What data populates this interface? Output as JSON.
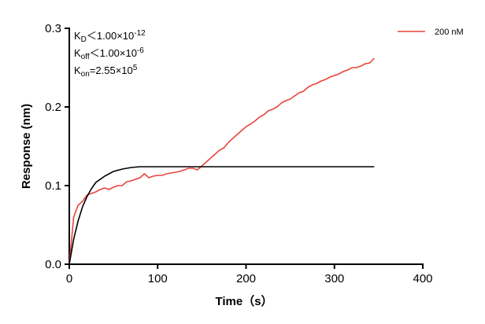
{
  "chart_data": {
    "type": "line",
    "xlabel": "Time（s）",
    "ylabel": "Response (nm)",
    "xlim": [
      0,
      400
    ],
    "xticks": [
      0,
      100,
      200,
      300,
      400
    ],
    "ylim": [
      0,
      0.3
    ],
    "yticks": [
      {
        "value": 0,
        "label": "0.0"
      },
      0.1,
      0.2,
      0.3
    ],
    "annotations": [
      {
        "base": "K",
        "sub": "D",
        "text": "＜1.00×10",
        "sup": "-12"
      },
      {
        "base": "K",
        "sub": "off",
        "text": "＜1.00×10",
        "sup": "-6"
      },
      {
        "base": "K",
        "sub": "on",
        "text": "=2.55×10",
        "sup": "5"
      }
    ],
    "series": [
      {
        "name": "200 nM",
        "color": "#e8453c",
        "x": [
          0,
          5,
          10,
          15,
          20,
          25,
          30,
          35,
          40,
          45,
          50,
          55,
          60,
          65,
          70,
          75,
          80,
          85,
          90,
          95,
          100,
          105,
          110,
          115,
          120,
          125,
          130,
          135,
          140,
          145,
          150,
          155,
          160,
          165,
          170,
          175,
          180,
          185,
          190,
          195,
          200,
          205,
          210,
          215,
          220,
          225,
          230,
          235,
          240,
          245,
          250,
          255,
          260,
          265,
          270,
          275,
          280,
          285,
          290,
          295,
          300,
          305,
          310,
          315,
          320,
          325,
          330,
          335,
          340,
          345
        ],
        "values": [
          0,
          0.06,
          0.075,
          0.08,
          0.088,
          0.09,
          0.092,
          0.095,
          0.097,
          0.095,
          0.098,
          0.1,
          0.1,
          0.105,
          0.106,
          0.108,
          0.11,
          0.115,
          0.11,
          0.112,
          0.113,
          0.113,
          0.115,
          0.116,
          0.117,
          0.118,
          0.12,
          0.122,
          0.122,
          0.12,
          0.125,
          0.13,
          0.135,
          0.14,
          0.145,
          0.148,
          0.155,
          0.16,
          0.165,
          0.17,
          0.175,
          0.178,
          0.182,
          0.187,
          0.19,
          0.195,
          0.197,
          0.2,
          0.205,
          0.208,
          0.21,
          0.214,
          0.218,
          0.22,
          0.225,
          0.228,
          0.23,
          0.233,
          0.235,
          0.238,
          0.24,
          0.242,
          0.245,
          0.247,
          0.25,
          0.25,
          0.252,
          0.255,
          0.256,
          0.262
        ]
      },
      {
        "color": "#000000",
        "x": [
          0,
          5,
          10,
          15,
          20,
          25,
          30,
          40,
          50,
          60,
          70,
          80,
          100,
          150,
          200,
          250,
          300,
          345
        ],
        "values": [
          0,
          0.032,
          0.055,
          0.073,
          0.086,
          0.096,
          0.104,
          0.112,
          0.118,
          0.121,
          0.123,
          0.124,
          0.124,
          0.124,
          0.124,
          0.124,
          0.124,
          0.124
        ]
      }
    ],
    "legend": "upper right"
  }
}
